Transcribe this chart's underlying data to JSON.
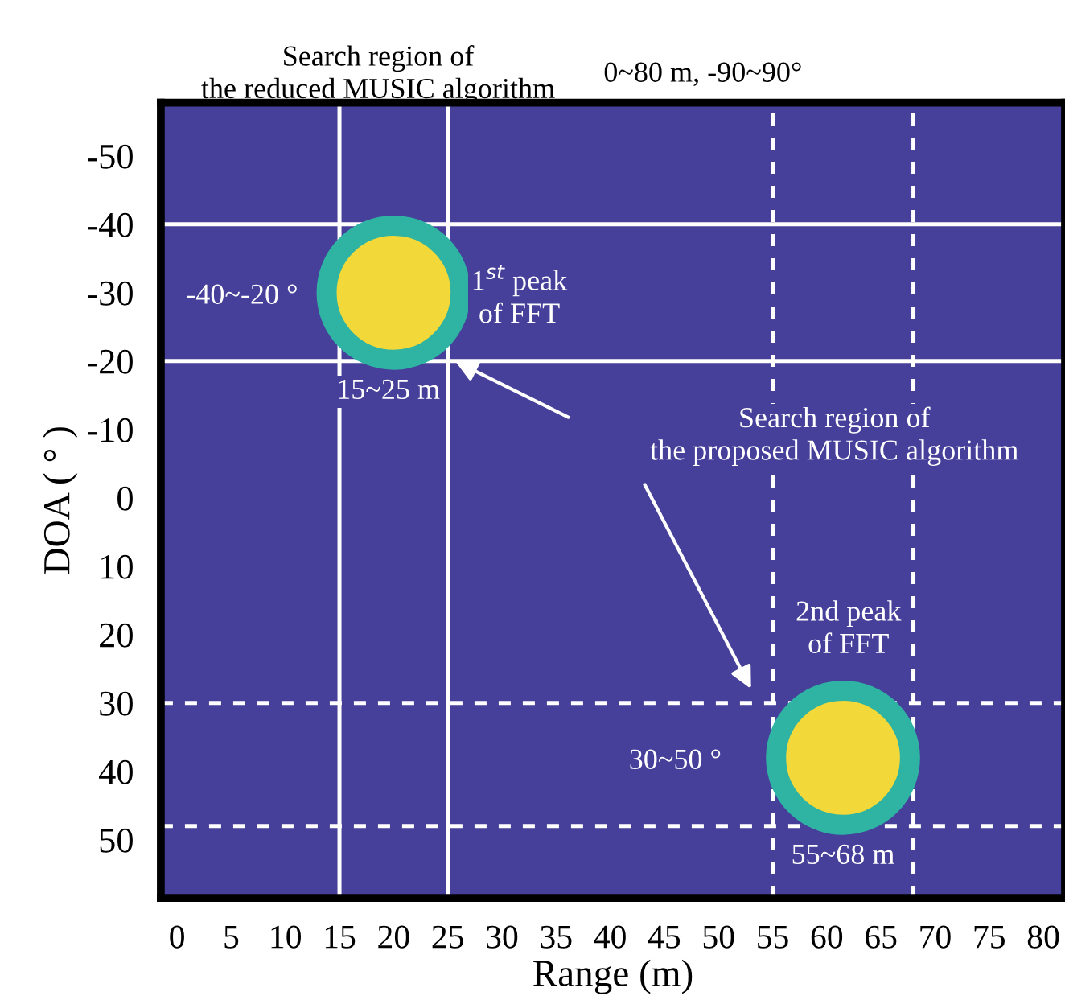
{
  "chart_data": {
    "type": "scatter",
    "xlabel": "Range (m)",
    "ylabel": "DOA ( ° )",
    "x": [
      20,
      61.5
    ],
    "values": [
      -30,
      38
    ],
    "colors": [
      "#f3d83a",
      "#f3d83a"
    ],
    "marker": "circle",
    "xlim": [
      -1.5,
      82
    ],
    "ylim": [
      58.5,
      -57.8
    ],
    "xticks": [
      0,
      5,
      10,
      15,
      20,
      25,
      30,
      35,
      40,
      45,
      50,
      55,
      60,
      65,
      70,
      75,
      80
    ],
    "yticks": [
      -50,
      -40,
      -30,
      -20,
      -10,
      0,
      10,
      20,
      30,
      40,
      50
    ],
    "grid": false,
    "legend": false,
    "ref_lines": [
      {
        "axis": "x",
        "value": 15,
        "color": "#ffffff",
        "line_style": "solid"
      },
      {
        "axis": "x",
        "value": 25,
        "color": "#ffffff",
        "line_style": "solid"
      },
      {
        "axis": "y",
        "value": -40,
        "color": "#ffffff",
        "line_style": "solid"
      },
      {
        "axis": "y",
        "value": -20,
        "color": "#ffffff",
        "line_style": "solid"
      },
      {
        "axis": "x",
        "value": 55,
        "color": "#ffffff",
        "line_style": "dashed"
      },
      {
        "axis": "x",
        "value": 68,
        "color": "#ffffff",
        "line_style": "dashed"
      },
      {
        "axis": "y",
        "value": 30,
        "color": "#ffffff",
        "line_style": "dashed"
      },
      {
        "axis": "y",
        "value": 48,
        "color": "#ffffff",
        "line_style": "dashed"
      }
    ],
    "annotations": [
      "Search region of\nthe reduced MUSIC algorithm",
      "0~80 m, -90~90°",
      "-40~-20 °",
      "1$^{st}$ peak\nof FFT",
      "15~25 m",
      "Search region of\nthe proposed MUSIC algorithm",
      "2nd peak\nof FFT",
      "30~50 °",
      "55~68 m"
    ]
  }
}
